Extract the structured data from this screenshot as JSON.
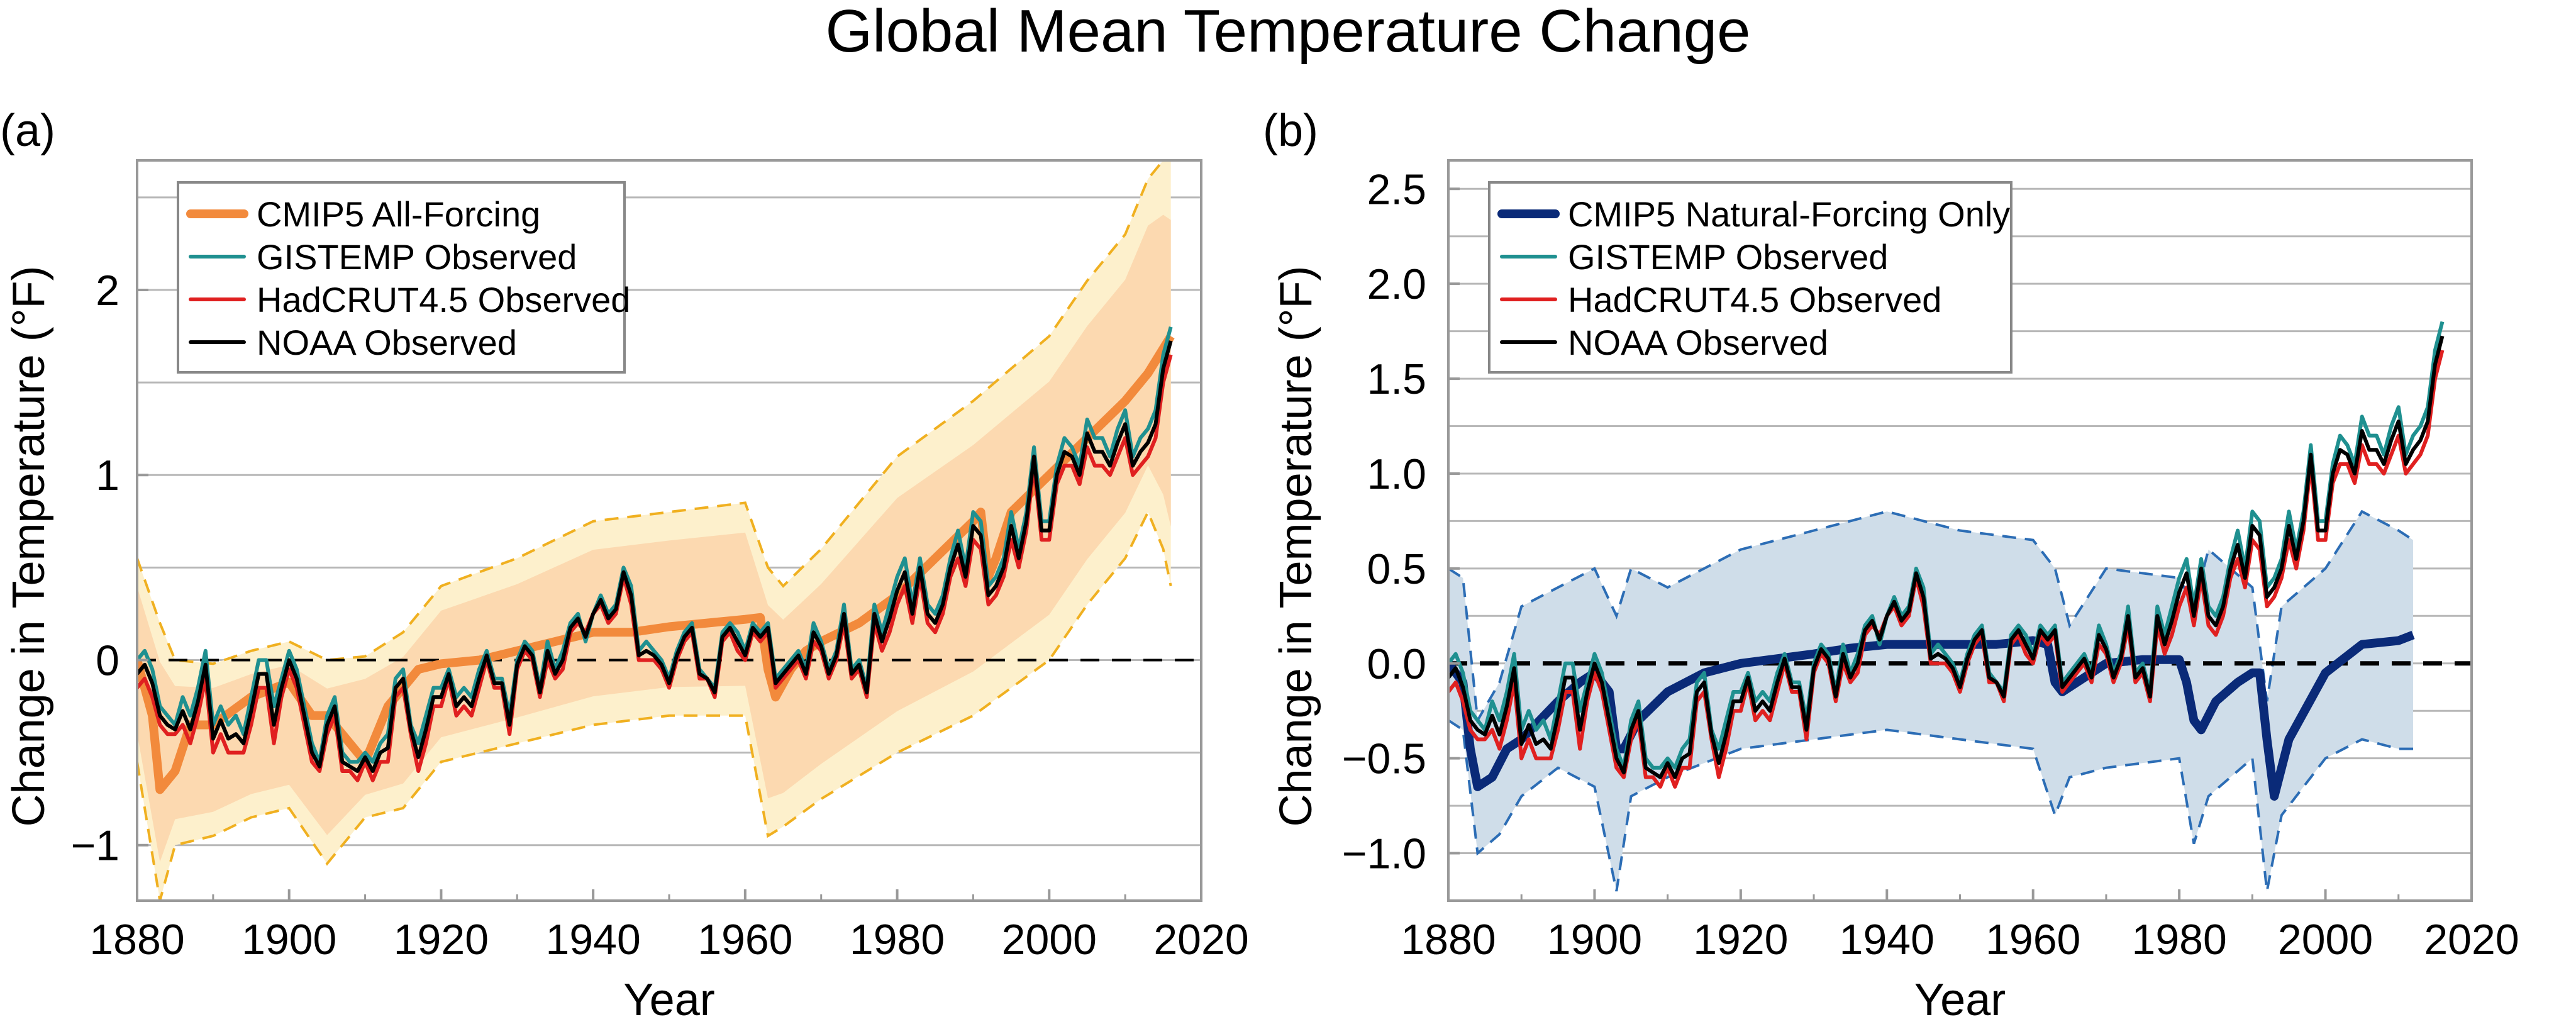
{
  "figure_title": "Global Mean Temperature Change",
  "colors": {
    "all_forcing": "#f28a3c",
    "all_forcing_band_outer": "#fdf0cc",
    "all_forcing_band_inner": "#fcd9b0",
    "all_forcing_dash": "#f0b020",
    "natural_forcing": "#0a2a78",
    "natural_band": "#cfdde9",
    "natural_dash": "#2c6db5",
    "gistemp": "#1f9090",
    "hadcrut": "#e02020",
    "noaa": "#000000",
    "grid": "#b8b8b8"
  },
  "chart_data": [
    {
      "panel_label": "(a)",
      "type": "line",
      "title": "",
      "xlabel": "Year",
      "ylabel": "Change in Temperature (°F)",
      "xlim": [
        1880,
        2020
      ],
      "ylim": [
        -1.3,
        2.7
      ],
      "xticks": [
        1880,
        1900,
        1920,
        1940,
        1960,
        1980,
        2000,
        2020
      ],
      "xtick_labels": [
        "1880",
        "1900",
        "1920",
        "1940",
        "1960",
        "1980",
        "2000",
        "2020"
      ],
      "yticks": [
        -1,
        0,
        1,
        2
      ],
      "ytick_labels": [
        "−1",
        "0",
        "1",
        "2"
      ],
      "grid": "horizontal",
      "zero_line": "dashed",
      "legend_position": "top-left",
      "legend": [
        "CMIP5 All-Forcing",
        "GISTEMP Observed",
        "HadCRUT4.5 Observed",
        "NOAA Observed"
      ],
      "model_band": {
        "name": "CMIP5 All-Forcing range",
        "x": [
          1880,
          1883,
          1885,
          1890,
          1895,
          1900,
          1905,
          1910,
          1915,
          1920,
          1930,
          1940,
          1950,
          1960,
          1963,
          1965,
          1970,
          1980,
          1990,
          2000,
          2005,
          2010,
          2013,
          2015,
          2016
        ],
        "upper": [
          0.55,
          0.2,
          0.0,
          -0.02,
          0.05,
          0.1,
          0.0,
          0.02,
          0.15,
          0.4,
          0.55,
          0.75,
          0.8,
          0.85,
          0.5,
          0.4,
          0.6,
          1.1,
          1.4,
          1.75,
          2.05,
          2.3,
          2.6,
          2.7,
          2.7
        ],
        "lower": [
          -0.55,
          -1.3,
          -1.0,
          -0.95,
          -0.85,
          -0.8,
          -1.1,
          -0.85,
          -0.8,
          -0.55,
          -0.45,
          -0.35,
          -0.3,
          -0.3,
          -0.95,
          -0.9,
          -0.75,
          -0.5,
          -0.3,
          0.0,
          0.3,
          0.55,
          0.8,
          0.6,
          0.4
        ]
      },
      "model_mean": {
        "name": "CMIP5 All-Forcing",
        "x": [
          1880,
          1882,
          1883,
          1885,
          1887,
          1890,
          1895,
          1900,
          1903,
          1905,
          1910,
          1913,
          1917,
          1920,
          1925,
          1930,
          1935,
          1940,
          1945,
          1950,
          1955,
          1960,
          1962,
          1963,
          1964,
          1966,
          1968,
          1970,
          1975,
          1980,
          1985,
          1990,
          1991,
          1992,
          1993,
          1995,
          2000,
          2005,
          2010,
          2013,
          2016
        ],
        "y": [
          0.0,
          -0.3,
          -0.7,
          -0.6,
          -0.35,
          -0.35,
          -0.2,
          -0.12,
          -0.3,
          -0.3,
          -0.55,
          -0.25,
          -0.05,
          -0.02,
          0.0,
          0.05,
          0.1,
          0.15,
          0.15,
          0.18,
          0.2,
          0.22,
          0.23,
          -0.05,
          -0.2,
          -0.05,
          0.05,
          0.1,
          0.2,
          0.35,
          0.55,
          0.75,
          0.8,
          0.45,
          0.55,
          0.8,
          1.0,
          1.2,
          1.4,
          1.55,
          1.75
        ]
      }
    },
    {
      "panel_label": "(b)",
      "type": "line",
      "title": "",
      "xlabel": "Year",
      "ylabel": "Change in Temperature (°F)",
      "xlim": [
        1880,
        2020
      ],
      "ylim": [
        -1.25,
        2.65
      ],
      "xticks": [
        1880,
        1900,
        1920,
        1940,
        1960,
        1980,
        2000,
        2020
      ],
      "xtick_labels": [
        "1880",
        "1900",
        "1920",
        "1940",
        "1960",
        "1980",
        "2000",
        "2020"
      ],
      "yticks": [
        -1.0,
        -0.5,
        0.0,
        0.5,
        1.0,
        1.5,
        2.0,
        2.5
      ],
      "ytick_labels": [
        "−1.0",
        "−0.5",
        "0.0",
        "0.5",
        "1.0",
        "1.5",
        "2.0",
        "2.5"
      ],
      "grid": "horizontal",
      "zero_line": "dashed",
      "legend_position": "top-left",
      "legend": [
        "CMIP5 Natural-Forcing Only",
        "GISTEMP Observed",
        "HadCRUT4.5 Observed",
        "NOAA Observed"
      ],
      "model_band": {
        "name": "CMIP5 Natural-Forcing Only range",
        "x": [
          1880,
          1882,
          1884,
          1887,
          1890,
          1895,
          1900,
          1903,
          1905,
          1910,
          1920,
          1930,
          1940,
          1950,
          1960,
          1963,
          1965,
          1970,
          1980,
          1982,
          1984,
          1990,
          1992,
          1994,
          2000,
          2005,
          2010,
          2012
        ],
        "upper": [
          0.5,
          0.45,
          -0.3,
          -0.1,
          0.3,
          0.4,
          0.5,
          0.25,
          0.5,
          0.4,
          0.6,
          0.7,
          0.8,
          0.7,
          0.65,
          0.5,
          0.2,
          0.5,
          0.45,
          0.3,
          0.6,
          0.4,
          -0.2,
          0.3,
          0.5,
          0.8,
          0.7,
          0.65
        ],
        "lower": [
          -0.3,
          -0.35,
          -1.0,
          -0.9,
          -0.7,
          -0.55,
          -0.65,
          -1.2,
          -0.7,
          -0.6,
          -0.45,
          -0.4,
          -0.35,
          -0.4,
          -0.45,
          -0.8,
          -0.6,
          -0.55,
          -0.5,
          -0.95,
          -0.7,
          -0.5,
          -1.2,
          -0.8,
          -0.5,
          -0.4,
          -0.45,
          -0.45
        ]
      },
      "model_mean": {
        "name": "CMIP5 Natural-Forcing Only",
        "x": [
          1880,
          1882,
          1883,
          1884,
          1886,
          1888,
          1890,
          1895,
          1898,
          1900,
          1902,
          1903,
          1904,
          1906,
          1910,
          1915,
          1920,
          1930,
          1935,
          1940,
          1950,
          1955,
          1960,
          1962,
          1963,
          1964,
          1966,
          1968,
          1970,
          1975,
          1980,
          1981,
          1982,
          1983,
          1985,
          1988,
          1990,
          1991,
          1992,
          1993,
          1995,
          2000,
          2005,
          2010,
          2012
        ],
        "y": [
          0.0,
          -0.1,
          -0.45,
          -0.65,
          -0.6,
          -0.45,
          -0.4,
          -0.2,
          -0.1,
          -0.05,
          -0.15,
          -0.45,
          -0.45,
          -0.3,
          -0.15,
          -0.05,
          0.0,
          0.05,
          0.08,
          0.1,
          0.1,
          0.1,
          0.12,
          0.1,
          -0.1,
          -0.15,
          -0.1,
          -0.05,
          0.0,
          0.02,
          0.02,
          -0.1,
          -0.3,
          -0.35,
          -0.2,
          -0.1,
          -0.05,
          -0.05,
          -0.4,
          -0.7,
          -0.4,
          -0.05,
          0.1,
          0.12,
          0.15
        ]
      }
    }
  ],
  "observed_series": {
    "x": [
      1880,
      1881,
      1882,
      1883,
      1884,
      1885,
      1886,
      1887,
      1888,
      1889,
      1890,
      1891,
      1892,
      1893,
      1894,
      1895,
      1896,
      1897,
      1898,
      1899,
      1900,
      1901,
      1902,
      1903,
      1904,
      1905,
      1906,
      1907,
      1908,
      1909,
      1910,
      1911,
      1912,
      1913,
      1914,
      1915,
      1916,
      1917,
      1918,
      1919,
      1920,
      1921,
      1922,
      1923,
      1924,
      1925,
      1926,
      1927,
      1928,
      1929,
      1930,
      1931,
      1932,
      1933,
      1934,
      1935,
      1936,
      1937,
      1938,
      1939,
      1940,
      1941,
      1942,
      1943,
      1944,
      1945,
      1946,
      1947,
      1948,
      1949,
      1950,
      1951,
      1952,
      1953,
      1954,
      1955,
      1956,
      1957,
      1958,
      1959,
      1960,
      1961,
      1962,
      1963,
      1964,
      1965,
      1966,
      1967,
      1968,
      1969,
      1970,
      1971,
      1972,
      1973,
      1974,
      1975,
      1976,
      1977,
      1978,
      1979,
      1980,
      1981,
      1982,
      1983,
      1984,
      1985,
      1986,
      1987,
      1988,
      1989,
      1990,
      1991,
      1992,
      1993,
      1994,
      1995,
      1996,
      1997,
      1998,
      1999,
      2000,
      2001,
      2002,
      2003,
      2004,
      2005,
      2006,
      2007,
      2008,
      2009,
      2010,
      2011,
      2012,
      2013,
      2014,
      2015,
      2016
    ],
    "GISTEMP Observed": [
      0.0,
      0.05,
      -0.05,
      -0.25,
      -0.3,
      -0.35,
      -0.2,
      -0.3,
      -0.15,
      0.05,
      -0.35,
      -0.25,
      -0.35,
      -0.3,
      -0.4,
      -0.2,
      0.0,
      0.0,
      -0.25,
      -0.1,
      0.05,
      -0.05,
      -0.25,
      -0.45,
      -0.55,
      -0.3,
      -0.2,
      -0.5,
      -0.55,
      -0.55,
      -0.5,
      -0.55,
      -0.45,
      -0.4,
      -0.1,
      -0.05,
      -0.35,
      -0.45,
      -0.3,
      -0.15,
      -0.15,
      -0.05,
      -0.2,
      -0.15,
      -0.2,
      -0.05,
      0.05,
      -0.1,
      -0.1,
      -0.3,
      0.0,
      0.1,
      0.05,
      -0.15,
      0.1,
      -0.05,
      0.05,
      0.2,
      0.25,
      0.1,
      0.25,
      0.35,
      0.25,
      0.3,
      0.5,
      0.4,
      0.05,
      0.1,
      0.05,
      0.0,
      -0.1,
      0.05,
      0.15,
      0.2,
      -0.05,
      -0.1,
      -0.15,
      0.15,
      0.2,
      0.15,
      0.05,
      0.2,
      0.15,
      0.2,
      -0.1,
      -0.05,
      0.0,
      0.05,
      -0.05,
      0.2,
      0.1,
      -0.05,
      0.05,
      0.3,
      -0.05,
      0.0,
      -0.15,
      0.3,
      0.15,
      0.3,
      0.45,
      0.55,
      0.3,
      0.55,
      0.3,
      0.25,
      0.35,
      0.55,
      0.7,
      0.5,
      0.8,
      0.75,
      0.4,
      0.45,
      0.55,
      0.8,
      0.6,
      0.8,
      1.15,
      0.75,
      0.75,
      1.05,
      1.2,
      1.15,
      1.05,
      1.3,
      1.2,
      1.2,
      1.1,
      1.25,
      1.35,
      1.1,
      1.2,
      1.25,
      1.35,
      1.65,
      1.8
    ],
    "HadCRUT4.5 Observed": [
      -0.15,
      -0.1,
      -0.2,
      -0.35,
      -0.4,
      -0.4,
      -0.35,
      -0.45,
      -0.3,
      -0.1,
      -0.5,
      -0.4,
      -0.5,
      -0.5,
      -0.5,
      -0.35,
      -0.15,
      -0.15,
      -0.45,
      -0.2,
      -0.05,
      -0.15,
      -0.35,
      -0.55,
      -0.6,
      -0.4,
      -0.3,
      -0.6,
      -0.6,
      -0.65,
      -0.55,
      -0.65,
      -0.55,
      -0.55,
      -0.2,
      -0.15,
      -0.4,
      -0.6,
      -0.45,
      -0.25,
      -0.25,
      -0.1,
      -0.3,
      -0.25,
      -0.3,
      -0.15,
      0.0,
      -0.15,
      -0.15,
      -0.4,
      -0.05,
      0.05,
      0.0,
      -0.2,
      0.0,
      -0.1,
      -0.05,
      0.15,
      0.2,
      0.15,
      0.25,
      0.3,
      0.2,
      0.25,
      0.45,
      0.3,
      0.0,
      0.0,
      0.0,
      -0.05,
      -0.15,
      0.0,
      0.1,
      0.15,
      -0.1,
      -0.1,
      -0.2,
      0.1,
      0.15,
      0.05,
      0.0,
      0.15,
      0.1,
      0.15,
      -0.15,
      -0.1,
      -0.05,
      0.0,
      -0.1,
      0.1,
      0.05,
      -0.1,
      0.0,
      0.2,
      -0.1,
      -0.05,
      -0.2,
      0.2,
      0.05,
      0.15,
      0.3,
      0.4,
      0.2,
      0.45,
      0.2,
      0.15,
      0.25,
      0.45,
      0.55,
      0.4,
      0.65,
      0.6,
      0.3,
      0.35,
      0.45,
      0.65,
      0.5,
      0.7,
      1.05,
      0.65,
      0.65,
      0.95,
      1.05,
      1.05,
      0.95,
      1.15,
      1.05,
      1.05,
      1.0,
      1.1,
      1.2,
      1.0,
      1.05,
      1.1,
      1.2,
      1.5,
      1.65
    ]
  }
}
